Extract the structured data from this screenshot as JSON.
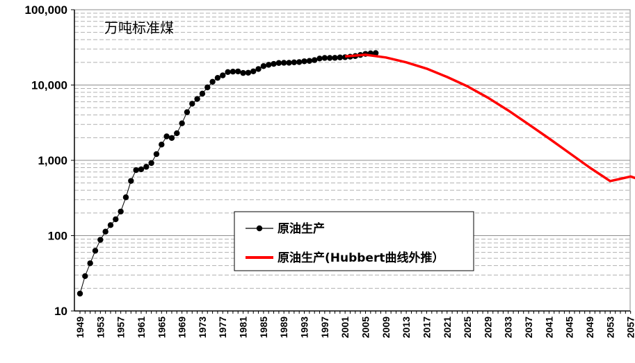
{
  "chart_data": {
    "type": "line",
    "title": "",
    "unit_label": "万吨标准煤",
    "xlabel": "",
    "ylabel": "",
    "y_scale": "log",
    "ylim": [
      10,
      100000
    ],
    "xlim": [
      1949,
      2058
    ],
    "y_ticks": [
      10,
      100,
      1000,
      10000,
      100000
    ],
    "y_tick_labels": [
      "10",
      "100",
      "1,000",
      "10,000",
      "100,000"
    ],
    "x_ticks": [
      1949,
      1953,
      1957,
      1961,
      1965,
      1969,
      1973,
      1977,
      1981,
      1985,
      1989,
      1993,
      1997,
      2001,
      2005,
      2009,
      2013,
      2017,
      2021,
      2025,
      2029,
      2033,
      2037,
      2041,
      2045,
      2049,
      2053,
      2057
    ],
    "x_tick_labels": [
      "1949",
      "1953",
      "1957",
      "1961",
      "1965",
      "1969",
      "1973",
      "1977",
      "1981",
      "1985",
      "1989",
      "1993",
      "1997",
      "2001",
      "2005",
      "2009",
      "2013",
      "2017",
      "2021",
      "2025",
      "2029",
      "2033",
      "2037",
      "2041",
      "2045",
      "2049",
      "2053",
      "2057"
    ],
    "grid": true,
    "legend_position": "bottom-center",
    "series": [
      {
        "name": "原油生产",
        "color": "#000000",
        "marker": "circle",
        "x": [
          1949,
          1950,
          1951,
          1952,
          1953,
          1954,
          1955,
          1956,
          1957,
          1958,
          1959,
          1960,
          1961,
          1962,
          1963,
          1964,
          1965,
          1966,
          1967,
          1968,
          1969,
          1970,
          1971,
          1972,
          1973,
          1974,
          1975,
          1976,
          1977,
          1978,
          1979,
          1980,
          1981,
          1982,
          1983,
          1984,
          1985,
          1986,
          1987,
          1988,
          1989,
          1990,
          1991,
          1992,
          1993,
          1994,
          1995,
          1996,
          1997,
          1998,
          1999,
          2000,
          2001,
          2002,
          2003,
          2004,
          2005,
          2006,
          2007
        ],
        "y": [
          17,
          29,
          43,
          63,
          88,
          113,
          138,
          165,
          209,
          323,
          533,
          742,
          760,
          820,
          920,
          1210,
          1620,
          2080,
          1980,
          2290,
          3100,
          4360,
          5650,
          6530,
          7690,
          9310,
          11050,
          12450,
          13430,
          14860,
          15070,
          15160,
          14460,
          14570,
          15200,
          16330,
          17830,
          18550,
          19090,
          19620,
          19730,
          19750,
          20020,
          20160,
          20680,
          20910,
          21420,
          22500,
          22890,
          22880,
          22950,
          23250,
          23420,
          23770,
          24260,
          25080,
          25910,
          26340,
          26560
        ]
      },
      {
        "name": "原油生产(Hubbert曲线外推）",
        "color": "#ff0000",
        "marker": "none",
        "x": [
          2001,
          2005,
          2009,
          2013,
          2017,
          2021,
          2025,
          2029,
          2033,
          2037,
          2041,
          2045,
          2049,
          2053,
          2057,
          2058
        ],
        "y": [
          24000,
          25200,
          23200,
          20000,
          16500,
          12800,
          9600,
          6800,
          4600,
          3000,
          1950,
          1250,
          800,
          530,
          610,
          580
        ]
      }
    ]
  }
}
